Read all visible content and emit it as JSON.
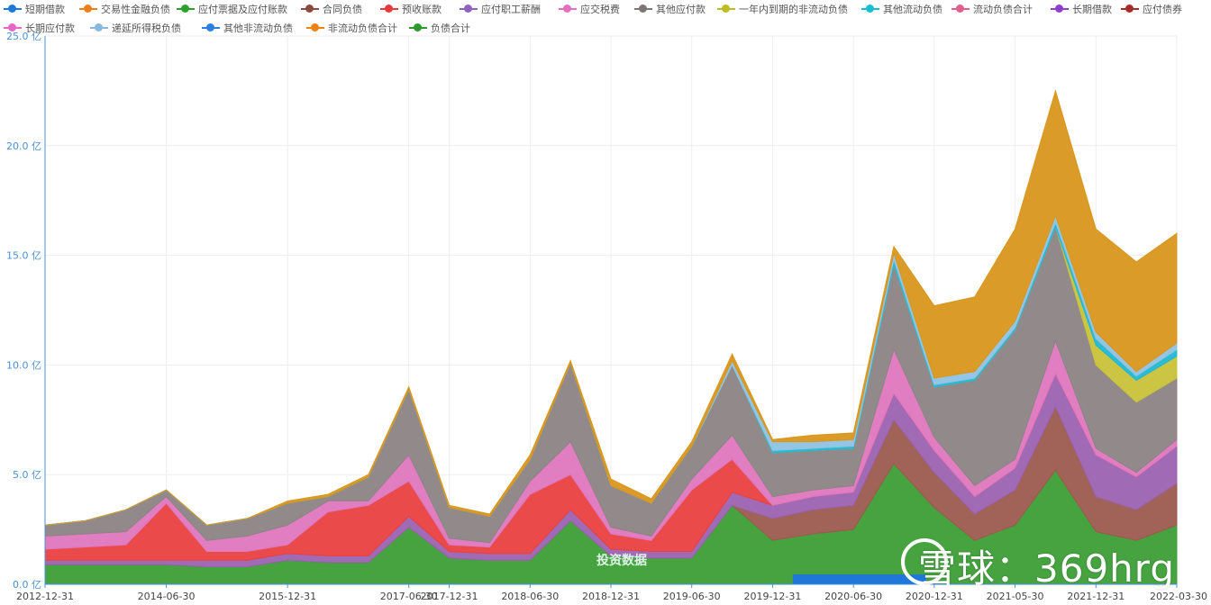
{
  "chart_data": {
    "type": "area",
    "stacked": true,
    "title": "",
    "xlabel": "",
    "ylabel": "",
    "ylim": [
      0,
      25
    ],
    "y_ticks": [
      "0.0 亿",
      "5.0 亿",
      "10.0 亿",
      "15.0 亿",
      "20.0 亿",
      "25.0 亿"
    ],
    "x_tick_labels": [
      "2012-12-31",
      "2014-06-30",
      "2015-12-31",
      "2017-06-30",
      "2017-12-31",
      "2018-06-30",
      "2018-12-31",
      "2019-06-30",
      "2019-12-31",
      "2020-06-30",
      "2020-12-31",
      "2021-05-30",
      "2021-12-31",
      "2022-03-30"
    ],
    "x": [
      "2012-12-31",
      "2013-06-30",
      "2013-12-31",
      "2014-06-30",
      "2014-12-31",
      "2015-06-30",
      "2015-12-31",
      "2016-06-30",
      "2016-12-31",
      "2017-06-30",
      "2017-12-31",
      "2018-03-31",
      "2018-06-30",
      "2018-09-30",
      "2018-12-31",
      "2019-03-31",
      "2019-06-30",
      "2019-09-30",
      "2019-12-31",
      "2020-03-31",
      "2020-06-30",
      "2020-09-30",
      "2020-12-31",
      "2021-03-31",
      "2021-05-30",
      "2021-09-30",
      "2021-12-31",
      "2022-01-31",
      "2022-03-30"
    ],
    "legend": [
      "短期借款",
      "交易性金融负债",
      "应付票据及应付账款",
      "合同负债",
      "预收账款",
      "应付职工薪酬",
      "应交税费",
      "其他应付款",
      "一年内到期的非流动负债",
      "其他流动负债",
      "流动负债合计",
      "长期借款",
      "应付债券",
      "长期应付款",
      "递延所得税负债",
      "其他非流动负债",
      "非流动负债合计",
      "负债合计"
    ],
    "series": [
      {
        "name": "负债合计",
        "color": "#3c9e36",
        "values": [
          0.9,
          0.9,
          0.9,
          0.9,
          0.8,
          0.8,
          1.1,
          1.0,
          1.0,
          2.6,
          1.2,
          1.1,
          1.1,
          2.9,
          1.3,
          1.2,
          1.2,
          3.6,
          2.0,
          2.3,
          2.5,
          5.5,
          3.5,
          2.0,
          2.7,
          5.2,
          2.4,
          2.0,
          2.7
        ]
      },
      {
        "name": "合同负债",
        "color": "#9c5a4e",
        "values": [
          0,
          0,
          0,
          0,
          0,
          0,
          0,
          0,
          0,
          0,
          0,
          0,
          0,
          0,
          0,
          0,
          0,
          0,
          1.0,
          1.1,
          1.1,
          2.0,
          1.6,
          1.2,
          1.6,
          2.9,
          1.6,
          1.4,
          1.9
        ]
      },
      {
        "name": "应付职工薪酬",
        "color": "#9b62b0",
        "values": [
          0.2,
          0.2,
          0.2,
          0.2,
          0.3,
          0.3,
          0.3,
          0.3,
          0.3,
          0.5,
          0.3,
          0.3,
          0.3,
          0.5,
          0.3,
          0.3,
          0.3,
          0.6,
          0.6,
          0.6,
          0.6,
          1.2,
          1.0,
          0.8,
          1.0,
          1.5,
          1.9,
          1.5,
          1.7
        ]
      },
      {
        "name": "预收账款",
        "color": "#e94040",
        "values": [
          0.5,
          0.6,
          0.7,
          2.6,
          0.4,
          0.4,
          0.4,
          2.0,
          2.3,
          1.6,
          0.3,
          0.3,
          2.7,
          1.6,
          0.7,
          0.5,
          2.8,
          1.5,
          0,
          0,
          0,
          0,
          0,
          0,
          0,
          0,
          0,
          0,
          0
        ]
      },
      {
        "name": "应交税费",
        "color": "#df76be",
        "values": [
          0.6,
          0.6,
          0.6,
          0.3,
          0.5,
          0.7,
          0.9,
          0.5,
          0.2,
          1.2,
          0.3,
          0.2,
          0.6,
          1.5,
          0.3,
          0.2,
          0.5,
          1.1,
          0.4,
          0.3,
          0.3,
          2.0,
          0.6,
          0.5,
          0.4,
          1.5,
          0.3,
          0.2,
          0.3
        ]
      },
      {
        "name": "其他应付款",
        "color": "#8c8484",
        "values": [
          0.5,
          0.6,
          1.0,
          0.3,
          0.7,
          0.8,
          1.0,
          0.2,
          1.1,
          3.0,
          1.4,
          1.2,
          1.0,
          3.6,
          1.9,
          1.5,
          1.5,
          3.2,
          2.0,
          1.8,
          1.7,
          3.9,
          2.3,
          4.8,
          5.9,
          5.2,
          3.8,
          3.2,
          2.8
        ]
      },
      {
        "name": "一年内到期的非流动负债",
        "color": "#c9c23a",
        "values": [
          0,
          0,
          0,
          0,
          0,
          0,
          0,
          0,
          0,
          0,
          0,
          0,
          0,
          0,
          0,
          0,
          0,
          0,
          0,
          0,
          0,
          0,
          0,
          0,
          0,
          0,
          0.9,
          1.0,
          1.0
        ]
      },
      {
        "name": "其他流动负债",
        "color": "#20b8d2",
        "values": [
          0,
          0,
          0,
          0,
          0,
          0,
          0,
          0,
          0,
          0,
          0,
          0,
          0,
          0,
          0,
          0,
          0,
          0,
          0.1,
          0.1,
          0.1,
          0.2,
          0.1,
          0.1,
          0.1,
          0.2,
          0.3,
          0.2,
          0.3
        ]
      },
      {
        "name": "递延所得税负债",
        "color": "#8fc2e4",
        "values": [
          0,
          0,
          0,
          0,
          0,
          0,
          0,
          0,
          0,
          0,
          0,
          0,
          0,
          0,
          0,
          0,
          0,
          0.2,
          0.4,
          0.3,
          0.3,
          0.3,
          0.3,
          0.3,
          0.3,
          0.3,
          0.3,
          0.2,
          0.3
        ]
      },
      {
        "name": "非流动负债合计",
        "color": "#d8961c",
        "values": [
          0,
          0,
          0,
          0,
          0,
          0,
          0.1,
          0.1,
          0.1,
          0.1,
          0.1,
          0.1,
          0.2,
          0.1,
          0.3,
          0.2,
          0.2,
          0.3,
          0.1,
          0.3,
          0.3,
          0.3,
          3.3,
          3.4,
          4.2,
          5.7,
          4.7,
          5.0,
          5.0
        ]
      }
    ],
    "overlay_blocks": [
      {
        "name": "长期借款",
        "color": "#1f77d8",
        "x_from": "2019-12-31",
        "x_to": "2020-09-30",
        "height": 0.45
      }
    ]
  },
  "watermark": {
    "brand_text": "雪球：369hrg",
    "source_text": "投资数据"
  }
}
